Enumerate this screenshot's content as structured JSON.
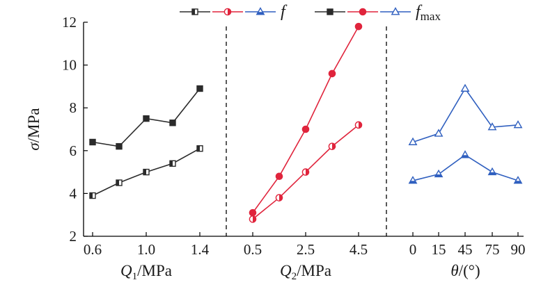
{
  "chart_data": {
    "type": "line",
    "ylabel": {
      "symbol": "σ",
      "unit": "/MPa"
    },
    "ylim": [
      2,
      12
    ],
    "yticks": [
      "2",
      "4",
      "6",
      "8",
      "10",
      "12"
    ],
    "legend": [
      {
        "label": "f",
        "sub": "",
        "series": [
          "f - Q1",
          "f - Q2",
          "f - θ"
        ]
      },
      {
        "label": "f",
        "sub": "max",
        "series": [
          "fmax - Q1",
          "fmax - Q2",
          "fmax - θ"
        ]
      }
    ],
    "panels": [
      {
        "id": "q1",
        "xlabel": {
          "symbol": "Q",
          "sub": "1",
          "unit": "/MPa"
        },
        "x": [
          0.6,
          0.8,
          1.0,
          1.2,
          1.4
        ],
        "tick_labels": [
          "0.6",
          "1.0",
          "1.4"
        ],
        "tick_indices": [
          0,
          2,
          4
        ],
        "color": "#2b2b2b",
        "marker": "square",
        "series": [
          {
            "kind": "f",
            "values": [
              3.9,
              4.5,
              5.0,
              5.4,
              6.1
            ]
          },
          {
            "kind": "fmax",
            "values": [
              6.4,
              6.2,
              7.5,
              7.3,
              8.9
            ]
          }
        ]
      },
      {
        "id": "q2",
        "xlabel": {
          "symbol": "Q",
          "sub": "2",
          "unit": "/MPa"
        },
        "x": [
          0.5,
          1.5,
          2.5,
          3.5,
          4.5
        ],
        "tick_labels": [
          "0.5",
          "2.5",
          "4.5"
        ],
        "tick_indices": [
          0,
          2,
          4
        ],
        "color": "#e0243c",
        "marker": "circle",
        "series": [
          {
            "kind": "f",
            "values": [
              2.8,
              3.8,
              5.0,
              6.2,
              7.2
            ]
          },
          {
            "kind": "fmax",
            "values": [
              3.1,
              4.8,
              7.0,
              9.6,
              11.8
            ]
          }
        ]
      },
      {
        "id": "theta",
        "xlabel": {
          "symbol": "θ",
          "sub": "",
          "unit": "/(°)"
        },
        "x": [
          0,
          15,
          45,
          75,
          90
        ],
        "tick_labels": [
          "0",
          "15",
          "45",
          "75",
          "90"
        ],
        "tick_indices": [
          0,
          1,
          2,
          3,
          4
        ],
        "color": "#2f5fbf",
        "marker": "triangle",
        "series": [
          {
            "kind": "f",
            "values": [
              4.6,
              4.9,
              5.8,
              5.0,
              4.6
            ]
          },
          {
            "kind": "fmax",
            "values": [
              6.4,
              6.8,
              8.9,
              7.1,
              7.2
            ]
          }
        ]
      }
    ]
  }
}
